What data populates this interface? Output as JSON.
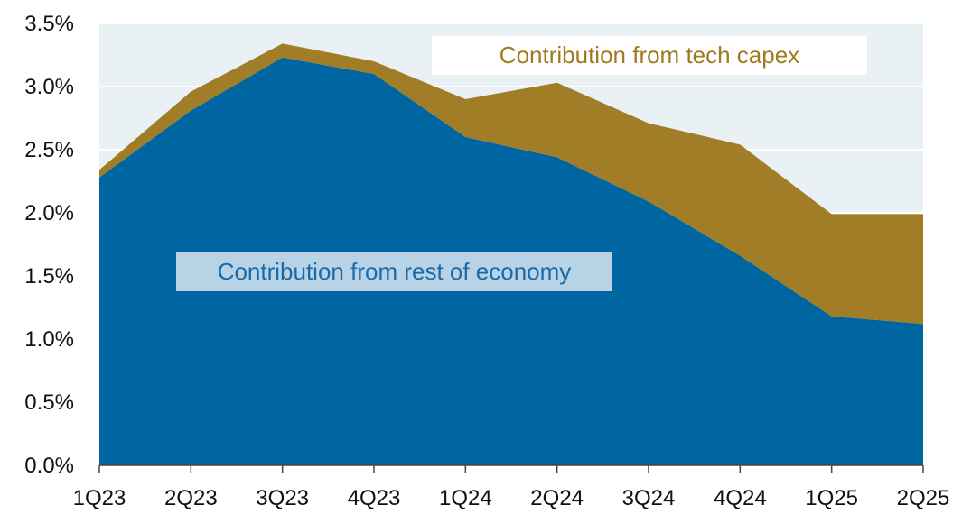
{
  "chart_data": {
    "type": "area",
    "stacked": true,
    "categories": [
      "1Q23",
      "2Q23",
      "3Q23",
      "4Q23",
      "1Q24",
      "2Q24",
      "3Q24",
      "4Q24",
      "1Q25",
      "2Q25"
    ],
    "series": [
      {
        "name": "Contribution from rest of economy",
        "color": "#0066a1",
        "values": [
          2.28,
          2.81,
          3.23,
          3.1,
          2.6,
          2.44,
          2.09,
          1.66,
          1.18,
          1.12
        ]
      },
      {
        "name": "Contribution from tech capex",
        "color": "#a07d26",
        "values": [
          0.06,
          0.15,
          0.11,
          0.1,
          0.3,
          0.59,
          0.62,
          0.88,
          0.81,
          0.87
        ]
      }
    ],
    "ylim": [
      0,
      3.5
    ],
    "yticks": [
      "0.0%",
      "0.5%",
      "1.0%",
      "1.5%",
      "2.0%",
      "2.5%",
      "3.0%",
      "3.5%"
    ],
    "grid": true,
    "title": "",
    "xlabel": "",
    "ylabel": ""
  }
}
